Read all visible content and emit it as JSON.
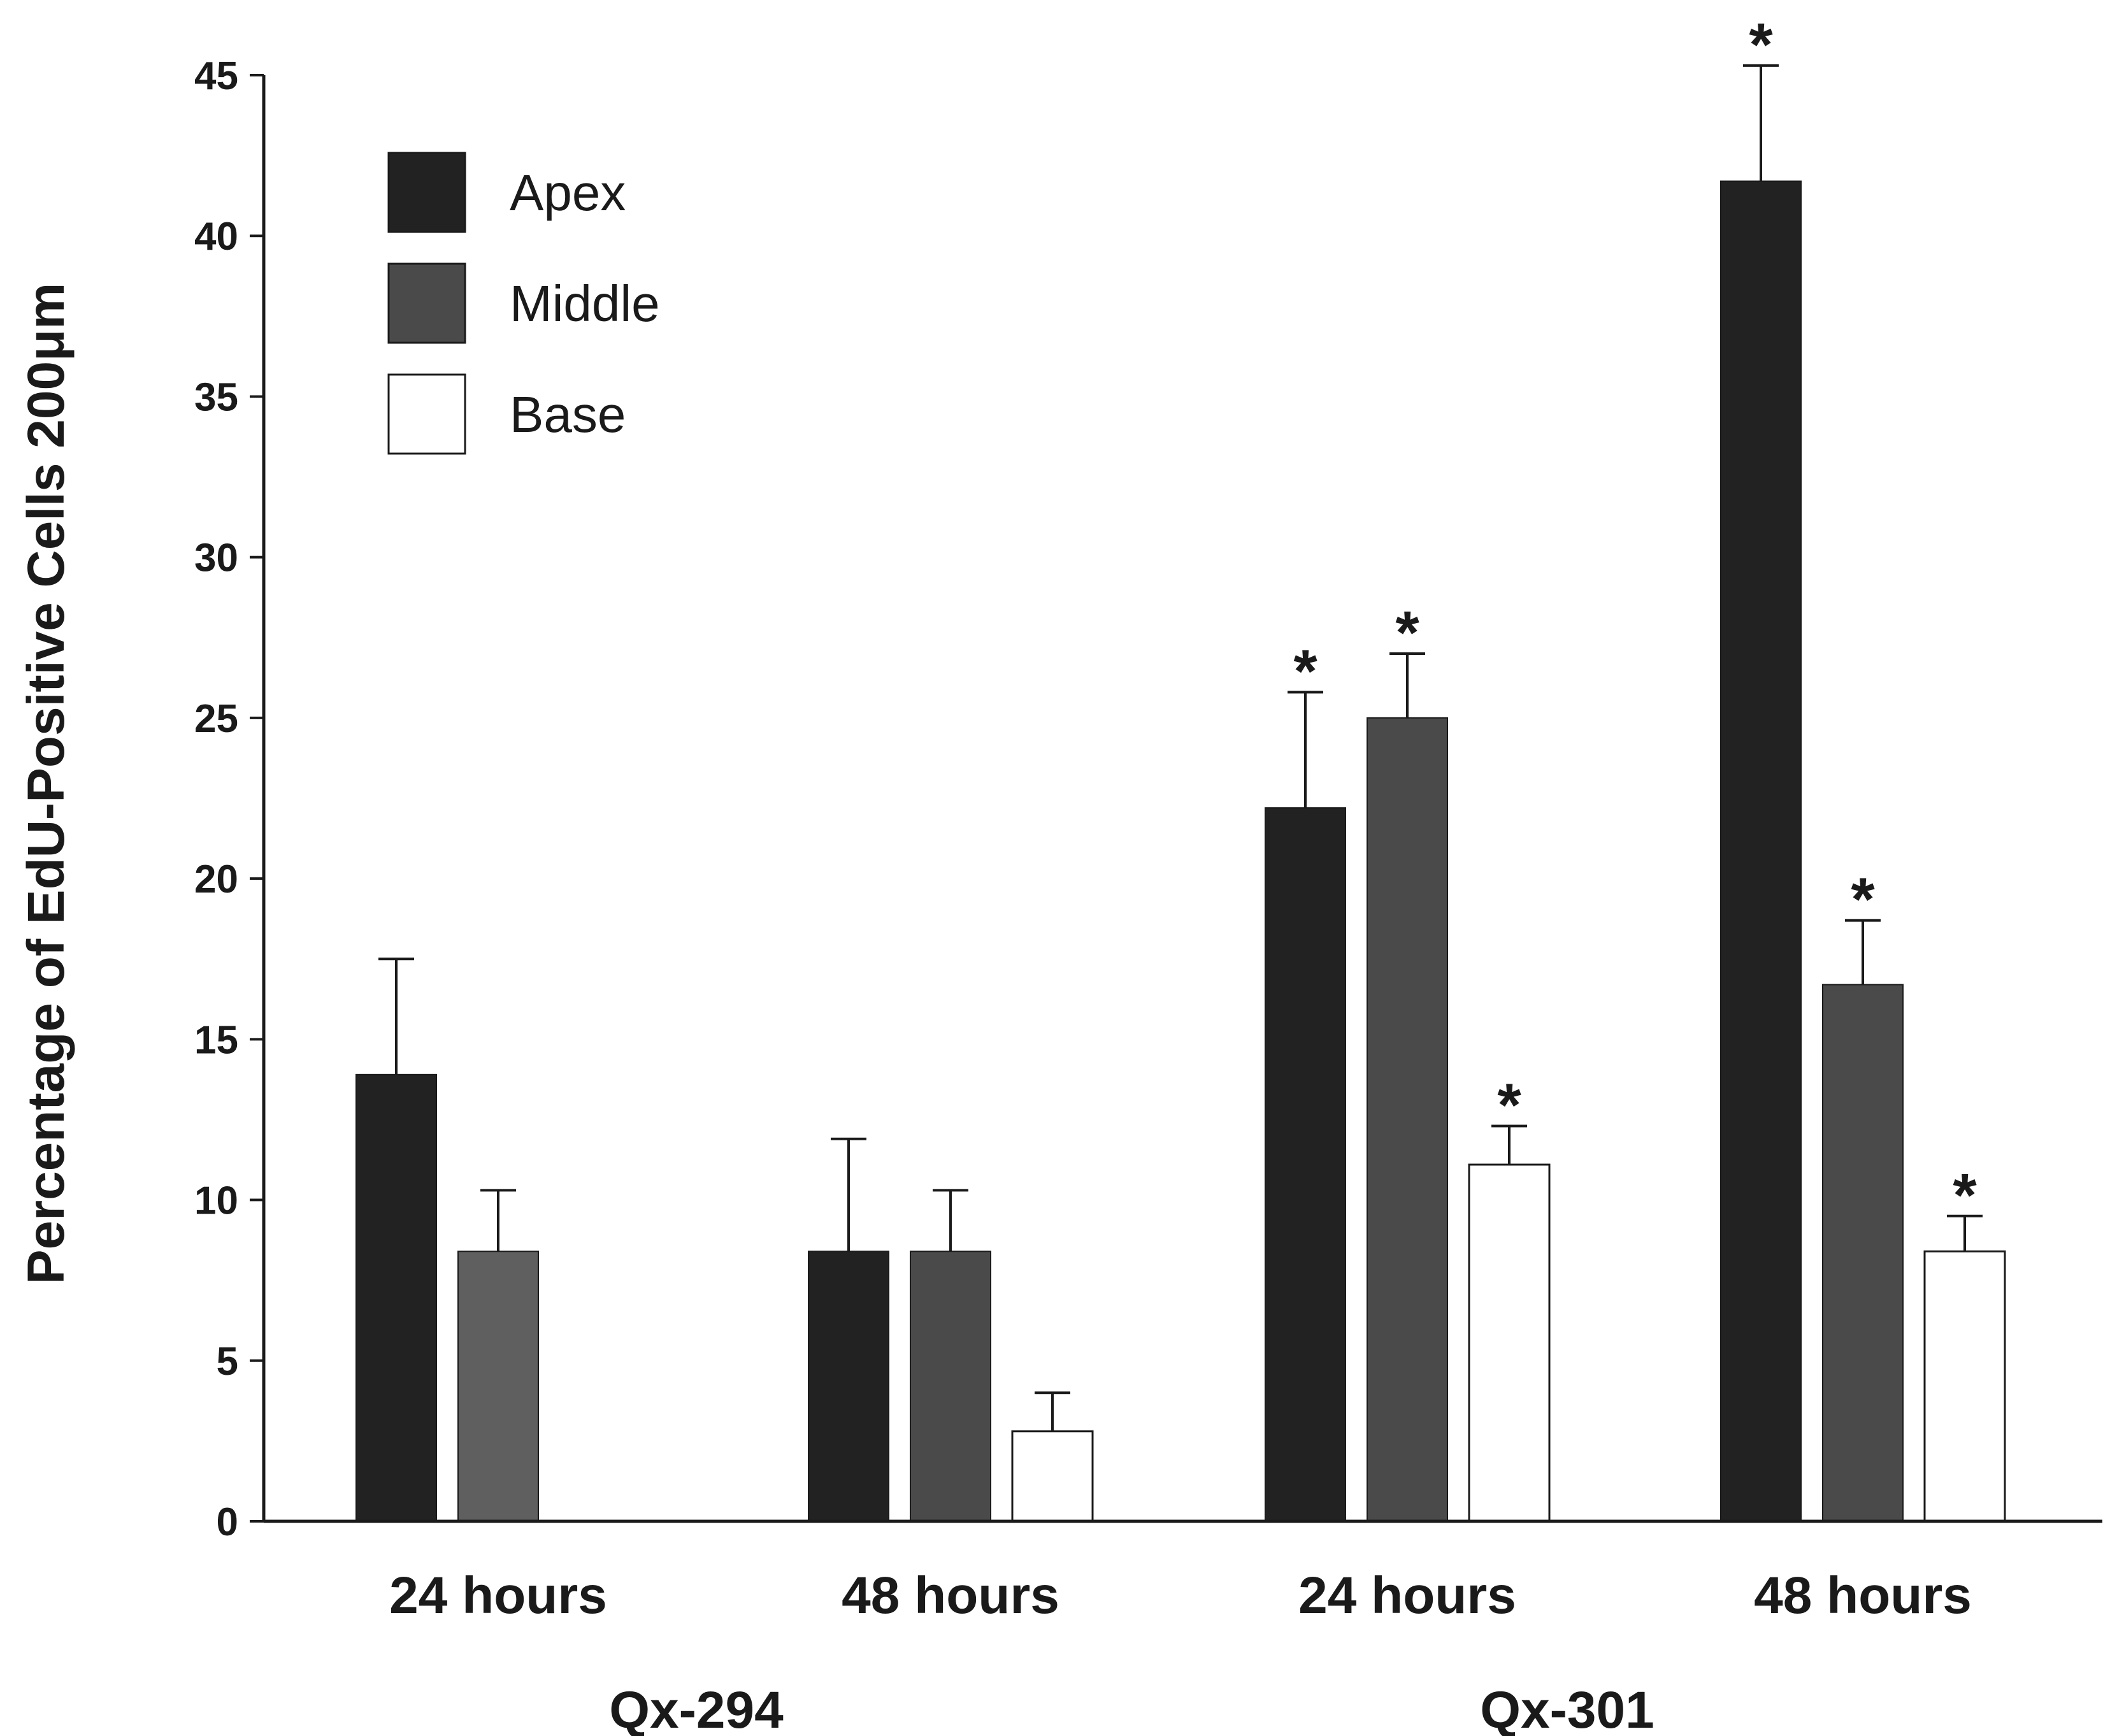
{
  "colors": {
    "apex": "#222222",
    "middle": "#4a4a4a",
    "middle_qx294": "#5f5f5f",
    "base": "#ffffff",
    "axis": "#1a1a1a",
    "error_bar": "#1a1a1a"
  },
  "chart_data": {
    "type": "bar",
    "title": "",
    "xlabel": "",
    "ylabel": "Percentage of EdU-Positive Cells 200μm",
    "ylim": [
      0,
      45
    ],
    "yticks": [
      0,
      5,
      10,
      15,
      20,
      25,
      30,
      35,
      40,
      45
    ],
    "legend_position": "top-left",
    "groups": [
      {
        "label": "Qx-294",
        "categories": [
          0,
          1
        ]
      },
      {
        "label": "Qx-301",
        "categories": [
          2,
          3
        ]
      }
    ],
    "categories": [
      "24 hours",
      "48 hours",
      "24 hours",
      "48 hours"
    ],
    "series": [
      {
        "name": "Apex",
        "color_key": "apex",
        "values": [
          13.9,
          8.4,
          22.2,
          41.7
        ],
        "errors": [
          3.6,
          3.5,
          3.6,
          3.6
        ],
        "significant": [
          false,
          false,
          true,
          true
        ]
      },
      {
        "name": "Middle",
        "color_key": "middle",
        "values": [
          8.4,
          8.4,
          25.0,
          16.7
        ],
        "errors": [
          1.9,
          1.9,
          2.0,
          2.0
        ],
        "significant": [
          false,
          false,
          true,
          true
        ]
      },
      {
        "name": "Base",
        "color_key": "base",
        "values": [
          null,
          2.8,
          11.1,
          8.4
        ],
        "errors": [
          null,
          1.2,
          1.2,
          1.1
        ],
        "significant": [
          false,
          false,
          true,
          true
        ]
      }
    ],
    "significance_marker": "*"
  }
}
